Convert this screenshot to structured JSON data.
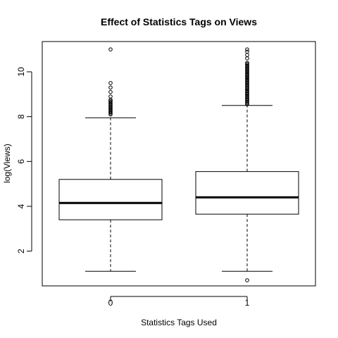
{
  "chart_data": {
    "type": "boxplot",
    "title": "Effect of Statistics Tags on Views",
    "xlabel": "Statistics Tags Used",
    "ylabel": "log(Views)",
    "categories": [
      "0",
      "1"
    ],
    "y_ticks": [
      2,
      4,
      6,
      8,
      10
    ],
    "ylim": [
      0.45,
      11.35
    ],
    "grid": false,
    "legend": "none",
    "boxes": [
      {
        "category": "0",
        "whisker_low": 1.1,
        "q1": 3.4,
        "median": 4.15,
        "q3": 5.2,
        "whisker_high": 7.95,
        "outliers": [
          8.1,
          8.15,
          8.2,
          8.25,
          8.3,
          8.35,
          8.4,
          8.45,
          8.5,
          8.55,
          8.6,
          8.65,
          8.7,
          8.75,
          8.9,
          9.1,
          9.3,
          9.5,
          11.0
        ]
      },
      {
        "category": "1",
        "whisker_low": 1.1,
        "q1": 3.65,
        "median": 4.4,
        "q3": 5.55,
        "whisker_high": 8.5,
        "outliers": [
          0.7,
          8.55,
          8.6,
          8.65,
          8.7,
          8.75,
          8.8,
          8.85,
          8.9,
          8.95,
          9.0,
          9.05,
          9.1,
          9.15,
          9.2,
          9.25,
          9.3,
          9.35,
          9.4,
          9.45,
          9.5,
          9.55,
          9.6,
          9.65,
          9.7,
          9.75,
          9.8,
          9.85,
          9.9,
          9.95,
          10.0,
          10.05,
          10.1,
          10.15,
          10.2,
          10.25,
          10.3,
          10.35,
          10.4,
          10.6,
          10.75,
          10.9,
          11.0
        ]
      }
    ]
  }
}
